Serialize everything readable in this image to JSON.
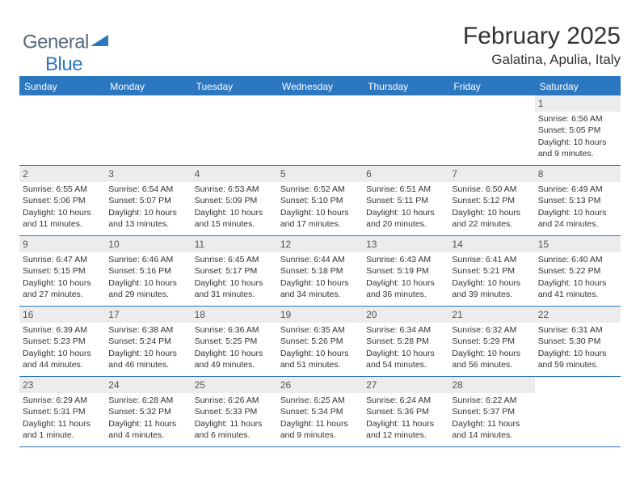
{
  "logo": {
    "word1": "General",
    "word2": "Blue"
  },
  "header": {
    "month": "February 2025",
    "location": "Galatina, Apulia, Italy"
  },
  "colors": {
    "accent": "#2b77c0",
    "daynum_bg": "#ececec",
    "text": "#333333",
    "logo_gray": "#5a6a7a"
  },
  "day_labels": [
    "Sunday",
    "Monday",
    "Tuesday",
    "Wednesday",
    "Thursday",
    "Friday",
    "Saturday"
  ],
  "weeks": [
    [
      null,
      null,
      null,
      null,
      null,
      null,
      {
        "n": "1",
        "sr": "Sunrise: 6:56 AM",
        "ss": "Sunset: 5:05 PM",
        "dl": "Daylight: 10 hours and 9 minutes."
      }
    ],
    [
      {
        "n": "2",
        "sr": "Sunrise: 6:55 AM",
        "ss": "Sunset: 5:06 PM",
        "dl": "Daylight: 10 hours and 11 minutes."
      },
      {
        "n": "3",
        "sr": "Sunrise: 6:54 AM",
        "ss": "Sunset: 5:07 PM",
        "dl": "Daylight: 10 hours and 13 minutes."
      },
      {
        "n": "4",
        "sr": "Sunrise: 6:53 AM",
        "ss": "Sunset: 5:09 PM",
        "dl": "Daylight: 10 hours and 15 minutes."
      },
      {
        "n": "5",
        "sr": "Sunrise: 6:52 AM",
        "ss": "Sunset: 5:10 PM",
        "dl": "Daylight: 10 hours and 17 minutes."
      },
      {
        "n": "6",
        "sr": "Sunrise: 6:51 AM",
        "ss": "Sunset: 5:11 PM",
        "dl": "Daylight: 10 hours and 20 minutes."
      },
      {
        "n": "7",
        "sr": "Sunrise: 6:50 AM",
        "ss": "Sunset: 5:12 PM",
        "dl": "Daylight: 10 hours and 22 minutes."
      },
      {
        "n": "8",
        "sr": "Sunrise: 6:49 AM",
        "ss": "Sunset: 5:13 PM",
        "dl": "Daylight: 10 hours and 24 minutes."
      }
    ],
    [
      {
        "n": "9",
        "sr": "Sunrise: 6:47 AM",
        "ss": "Sunset: 5:15 PM",
        "dl": "Daylight: 10 hours and 27 minutes."
      },
      {
        "n": "10",
        "sr": "Sunrise: 6:46 AM",
        "ss": "Sunset: 5:16 PM",
        "dl": "Daylight: 10 hours and 29 minutes."
      },
      {
        "n": "11",
        "sr": "Sunrise: 6:45 AM",
        "ss": "Sunset: 5:17 PM",
        "dl": "Daylight: 10 hours and 31 minutes."
      },
      {
        "n": "12",
        "sr": "Sunrise: 6:44 AM",
        "ss": "Sunset: 5:18 PM",
        "dl": "Daylight: 10 hours and 34 minutes."
      },
      {
        "n": "13",
        "sr": "Sunrise: 6:43 AM",
        "ss": "Sunset: 5:19 PM",
        "dl": "Daylight: 10 hours and 36 minutes."
      },
      {
        "n": "14",
        "sr": "Sunrise: 6:41 AM",
        "ss": "Sunset: 5:21 PM",
        "dl": "Daylight: 10 hours and 39 minutes."
      },
      {
        "n": "15",
        "sr": "Sunrise: 6:40 AM",
        "ss": "Sunset: 5:22 PM",
        "dl": "Daylight: 10 hours and 41 minutes."
      }
    ],
    [
      {
        "n": "16",
        "sr": "Sunrise: 6:39 AM",
        "ss": "Sunset: 5:23 PM",
        "dl": "Daylight: 10 hours and 44 minutes."
      },
      {
        "n": "17",
        "sr": "Sunrise: 6:38 AM",
        "ss": "Sunset: 5:24 PM",
        "dl": "Daylight: 10 hours and 46 minutes."
      },
      {
        "n": "18",
        "sr": "Sunrise: 6:36 AM",
        "ss": "Sunset: 5:25 PM",
        "dl": "Daylight: 10 hours and 49 minutes."
      },
      {
        "n": "19",
        "sr": "Sunrise: 6:35 AM",
        "ss": "Sunset: 5:26 PM",
        "dl": "Daylight: 10 hours and 51 minutes."
      },
      {
        "n": "20",
        "sr": "Sunrise: 6:34 AM",
        "ss": "Sunset: 5:28 PM",
        "dl": "Daylight: 10 hours and 54 minutes."
      },
      {
        "n": "21",
        "sr": "Sunrise: 6:32 AM",
        "ss": "Sunset: 5:29 PM",
        "dl": "Daylight: 10 hours and 56 minutes."
      },
      {
        "n": "22",
        "sr": "Sunrise: 6:31 AM",
        "ss": "Sunset: 5:30 PM",
        "dl": "Daylight: 10 hours and 59 minutes."
      }
    ],
    [
      {
        "n": "23",
        "sr": "Sunrise: 6:29 AM",
        "ss": "Sunset: 5:31 PM",
        "dl": "Daylight: 11 hours and 1 minute."
      },
      {
        "n": "24",
        "sr": "Sunrise: 6:28 AM",
        "ss": "Sunset: 5:32 PM",
        "dl": "Daylight: 11 hours and 4 minutes."
      },
      {
        "n": "25",
        "sr": "Sunrise: 6:26 AM",
        "ss": "Sunset: 5:33 PM",
        "dl": "Daylight: 11 hours and 6 minutes."
      },
      {
        "n": "26",
        "sr": "Sunrise: 6:25 AM",
        "ss": "Sunset: 5:34 PM",
        "dl": "Daylight: 11 hours and 9 minutes."
      },
      {
        "n": "27",
        "sr": "Sunrise: 6:24 AM",
        "ss": "Sunset: 5:36 PM",
        "dl": "Daylight: 11 hours and 12 minutes."
      },
      {
        "n": "28",
        "sr": "Sunrise: 6:22 AM",
        "ss": "Sunset: 5:37 PM",
        "dl": "Daylight: 11 hours and 14 minutes."
      },
      null
    ]
  ]
}
